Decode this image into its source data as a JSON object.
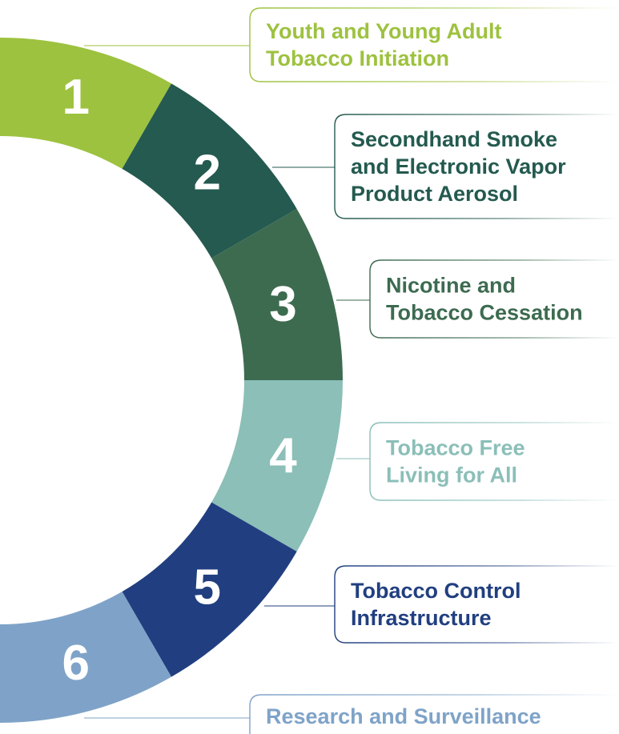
{
  "items": [
    {
      "number": "1",
      "lines": [
        "Youth and Young Adult",
        "Tobacco Initiation"
      ],
      "color": "#9dc23f"
    },
    {
      "number": "2",
      "lines": [
        "Secondhand Smoke",
        "and Electronic Vapor",
        "Product Aerosol"
      ],
      "color": "#245a4f"
    },
    {
      "number": "3",
      "lines": [
        "Nicotine and",
        "Tobacco Cessation"
      ],
      "color": "#3d6b50"
    },
    {
      "number": "4",
      "lines": [
        "Tobacco Free",
        "Living for All"
      ],
      "color": "#8bbfb8"
    },
    {
      "number": "5",
      "lines": [
        "Tobacco Control",
        "Infrastructure"
      ],
      "color": "#213f80"
    },
    {
      "number": "6",
      "lines": [
        "Research and Surveillance"
      ],
      "color": "#7fa3c8"
    }
  ]
}
